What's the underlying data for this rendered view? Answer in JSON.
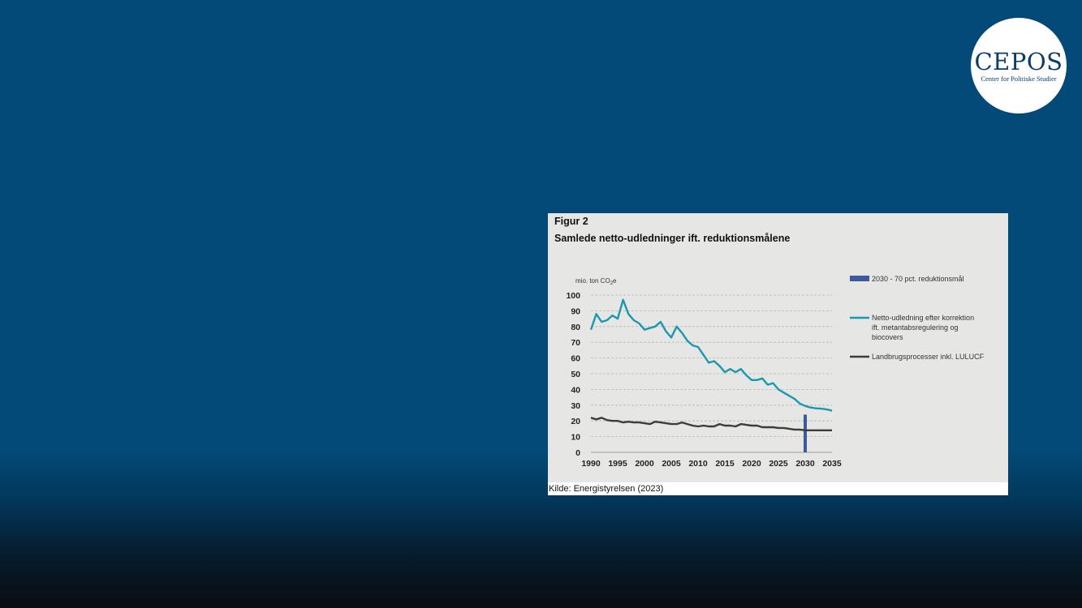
{
  "logo": {
    "wordmark": "CEPOS",
    "tagline": "Center for Politiske Studier"
  },
  "figure": {
    "number": "Figur 2",
    "title": "Samlede netto-udledninger ift. reduktionsmålene",
    "source": "Kilde: Energistyrelsen (2023)"
  },
  "chart_data": {
    "type": "line",
    "ylabel_prefix": "mio. ton CO",
    "ylabel_sub": "2",
    "ylabel_suffix": "e",
    "ylim": [
      0,
      100
    ],
    "yticks": [
      "0",
      "10",
      "20",
      "30",
      "40",
      "50",
      "60",
      "70",
      "80",
      "90",
      "100"
    ],
    "xticks": [
      "1990",
      "1995",
      "2000",
      "2005",
      "2010",
      "2015",
      "2020",
      "2025",
      "2030",
      "2035"
    ],
    "xrange": [
      1990,
      2035
    ],
    "grid": true,
    "legend_placement": "right",
    "bar": {
      "name": "2030 - 70 pct. reduktionsmål",
      "x": 2030,
      "value": 24,
      "color": "#3d5a9a"
    },
    "series": [
      {
        "name": "Netto-udledning efter korrektion ift. metantabsregulering og biocovers",
        "name_lines": [
          "Netto-udledning efter korrektion",
          "ift. metantabsregulering og",
          "biocovers"
        ],
        "color": "#1a98ad",
        "x": [
          1990,
          1991,
          1992,
          1993,
          1994,
          1995,
          1996,
          1997,
          1998,
          1999,
          2000,
          2001,
          2002,
          2003,
          2004,
          2005,
          2006,
          2007,
          2008,
          2009,
          2010,
          2011,
          2012,
          2013,
          2014,
          2015,
          2016,
          2017,
          2018,
          2019,
          2020,
          2021,
          2022,
          2023,
          2024,
          2025,
          2026,
          2027,
          2028,
          2029,
          2030,
          2031,
          2032,
          2033,
          2034,
          2035
        ],
        "values": [
          78,
          88,
          83,
          84,
          87,
          85,
          97,
          88,
          84,
          82,
          78,
          79,
          80,
          83,
          77,
          73,
          80,
          76,
          71,
          68,
          67,
          62,
          57,
          58,
          55,
          51,
          53,
          51,
          53,
          49,
          46,
          46,
          47,
          43,
          44,
          40,
          38,
          36,
          34,
          31,
          29.5,
          28.5,
          28,
          27.8,
          27.3,
          26.5
        ]
      },
      {
        "name": "Landbrugsprocesser inkl. LULUCF",
        "name_lines": [
          "Landbrugsprocesser inkl. LULUCF"
        ],
        "color": "#3c3c3c",
        "x": [
          1990,
          1991,
          1992,
          1993,
          1994,
          1995,
          1996,
          1997,
          1998,
          1999,
          2000,
          2001,
          2002,
          2003,
          2004,
          2005,
          2006,
          2007,
          2008,
          2009,
          2010,
          2011,
          2012,
          2013,
          2014,
          2015,
          2016,
          2017,
          2018,
          2019,
          2020,
          2021,
          2022,
          2023,
          2024,
          2025,
          2026,
          2027,
          2028,
          2029,
          2030,
          2031,
          2032,
          2033,
          2034,
          2035
        ],
        "values": [
          22,
          21,
          22,
          20.5,
          20,
          20,
          19,
          19.5,
          19,
          19,
          18.5,
          18,
          19.5,
          19,
          18.5,
          18,
          18,
          19,
          18,
          17,
          16.5,
          17,
          16.5,
          16.5,
          18,
          17,
          17,
          16.5,
          18,
          17.5,
          17,
          17,
          16,
          16,
          16,
          15.5,
          15.5,
          15,
          14.5,
          14.5,
          14,
          14,
          14,
          14,
          14,
          14
        ]
      }
    ]
  }
}
